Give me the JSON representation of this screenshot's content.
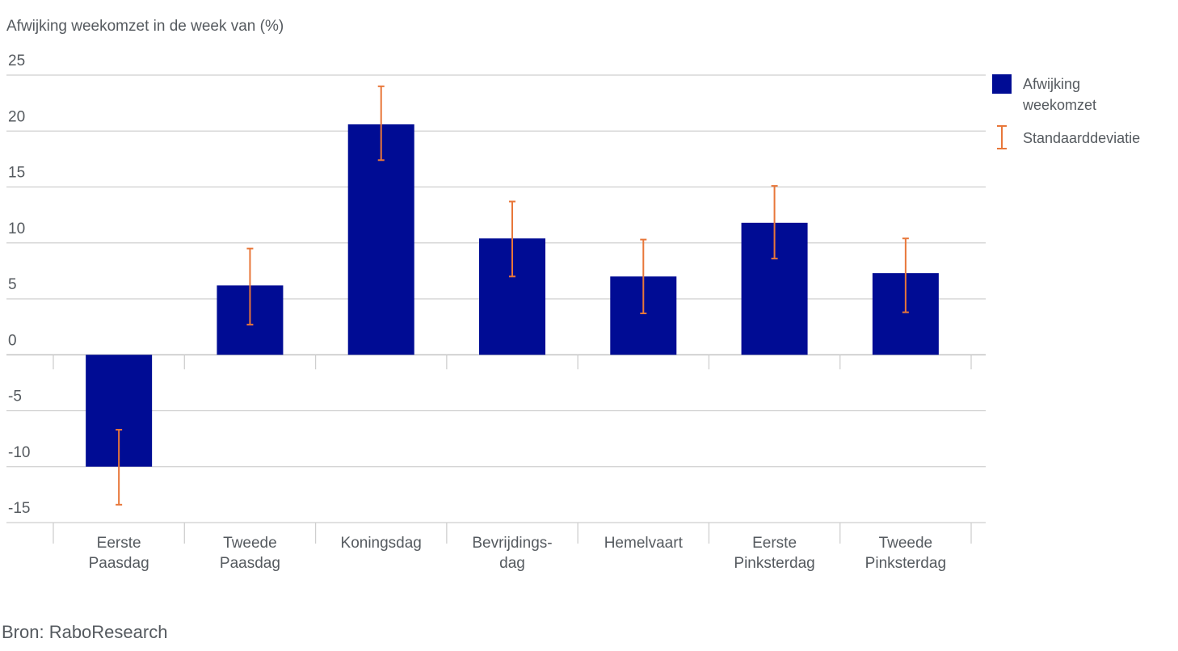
{
  "chart_data": {
    "type": "bar",
    "ylabel": "Afwijking weekomzet in de week van (%)",
    "ylim": [
      -15,
      25
    ],
    "yticks": [
      25,
      20,
      15,
      10,
      5,
      0,
      -5,
      -10,
      -15
    ],
    "categories": [
      [
        "Eerste",
        "Paasdag"
      ],
      [
        "Tweede",
        "Paasdag"
      ],
      [
        "Koningsdag"
      ],
      [
        "Bevrijdings-",
        "dag"
      ],
      [
        "Hemelvaart"
      ],
      [
        "Eerste",
        "Pinksterdag"
      ],
      [
        "Tweede",
        "Pinksterdag"
      ]
    ],
    "series": [
      {
        "name": "Afwijking weekomzet",
        "color": "#000c94",
        "values": [
          -10.0,
          6.2,
          20.6,
          10.4,
          7.0,
          11.8,
          7.3
        ]
      },
      {
        "name": "Standaarddeviatie",
        "color": "#e8773a",
        "type": "errorbar",
        "low": [
          -13.4,
          2.7,
          17.4,
          7.0,
          3.7,
          8.6,
          3.8
        ],
        "high": [
          -6.7,
          9.5,
          24.0,
          13.7,
          10.3,
          15.1,
          10.4
        ]
      }
    ],
    "legend": [
      "Afwijking weekomzet",
      "Standaarddeviatie"
    ],
    "legend_lines": [
      [
        "Afwijking",
        "weekomzet"
      ],
      [
        "Standaarddeviatie"
      ]
    ],
    "legend_position": "top-right",
    "grid": true
  },
  "source": "Bron: RaboResearch"
}
